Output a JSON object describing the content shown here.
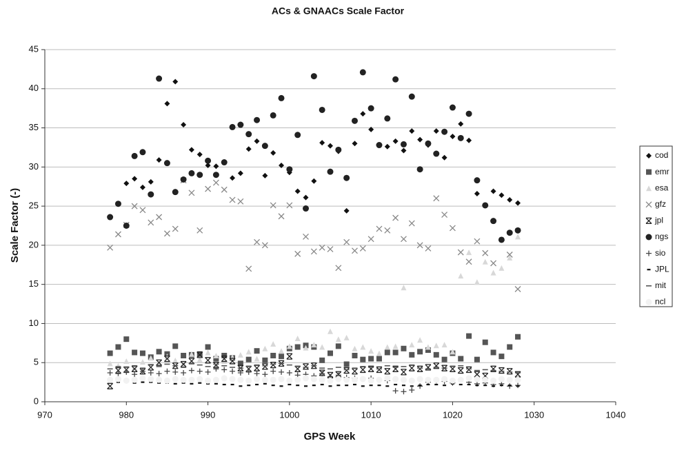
{
  "chart_data": {
    "type": "scatter",
    "title": "ACs & GNAACs Scale Factor",
    "x_label": "GPS Week",
    "y_label": "Scale Factor (-)",
    "xlim": [
      970,
      1040
    ],
    "xticks": [
      970,
      980,
      990,
      1000,
      1010,
      1020,
      1030,
      1040
    ],
    "ylim": [
      0,
      45
    ],
    "yticks": [
      0,
      5,
      10,
      15,
      20,
      25,
      30,
      35,
      40,
      45
    ],
    "grid": true,
    "legend": "right",
    "x": [
      978,
      979,
      980,
      981,
      982,
      983,
      984,
      985,
      986,
      987,
      988,
      989,
      990,
      991,
      992,
      993,
      994,
      995,
      996,
      997,
      998,
      999,
      1000,
      1001,
      1002,
      1003,
      1004,
      1005,
      1006,
      1007,
      1008,
      1009,
      1010,
      1011,
      1012,
      1013,
      1014,
      1015,
      1016,
      1017,
      1018,
      1019,
      1020,
      1021,
      1022,
      1023,
      1024,
      1025,
      1026,
      1027,
      1028
    ],
    "series": [
      {
        "name": "cod",
        "color": "#111111",
        "marker": "diamond",
        "values": [
          null,
          null,
          27.9,
          28.5,
          27.4,
          28.1,
          30.9,
          38.1,
          40.9,
          35.4,
          32.2,
          31.6,
          30.2,
          30.1,
          null,
          28.6,
          29.2,
          32.3,
          33.3,
          28.9,
          31.8,
          30.2,
          29.3,
          26.9,
          26.1,
          28.2,
          33.1,
          32.7,
          32.0,
          24.4,
          33.0,
          36.8,
          34.8,
          32.8,
          32.6,
          33.3,
          32.1,
          34.6,
          33.5,
          32.8,
          34.6,
          31.2,
          33.9,
          35.5,
          33.4,
          26.6,
          null,
          26.9,
          26.4,
          25.8,
          25.4
        ]
      },
      {
        "name": "emr",
        "color": "#555555",
        "marker": "square",
        "values": [
          6.2,
          7.0,
          8.0,
          6.3,
          6.2,
          5.7,
          6.4,
          6.1,
          7.1,
          5.9,
          6.0,
          6.1,
          7.0,
          5.5,
          5.9,
          5.6,
          4.9,
          5.4,
          6.5,
          5.3,
          5.9,
          5.8,
          6.8,
          7.0,
          7.2,
          7.0,
          5.3,
          6.2,
          7.1,
          4.8,
          5.9,
          5.4,
          5.5,
          5.5,
          6.3,
          6.3,
          6.8,
          6.0,
          6.4,
          6.6,
          6.0,
          5.4,
          6.2,
          5.5,
          8.4,
          5.4,
          7.6,
          6.3,
          5.8,
          7.0,
          8.3
        ]
      },
      {
        "name": "esa",
        "color": "#d8d8d8",
        "marker": "triangle",
        "values": [
          4.9,
          4.6,
          5.2,
          4.4,
          5.1,
          5.6,
          5.0,
          5.8,
          5.3,
          4.9,
          6.1,
          5.4,
          6.3,
          5.9,
          5.2,
          5.7,
          6.0,
          6.4,
          5.5,
          6.8,
          7.4,
          6.5,
          7.1,
          8.1,
          6.9,
          7.3,
          7.0,
          9.0,
          8.0,
          8.2,
          6.8,
          7.0,
          6.5,
          6.2,
          7.0,
          7.1,
          14.6,
          7.3,
          7.9,
          7.0,
          7.2,
          7.3,
          6.4,
          16.1,
          19.1,
          15.3,
          17.9,
          16.5,
          17.1,
          18.4,
          21.1
        ]
      },
      {
        "name": "gfz",
        "color": "#888888",
        "marker": "cross",
        "values": [
          19.7,
          21.4,
          22.6,
          25.0,
          24.5,
          22.9,
          23.6,
          21.5,
          22.1,
          28.3,
          26.7,
          21.9,
          27.2,
          28.0,
          27.1,
          25.8,
          25.6,
          17.0,
          20.4,
          20.0,
          25.1,
          23.7,
          25.1,
          18.9,
          21.1,
          19.2,
          19.7,
          19.5,
          17.1,
          20.4,
          19.3,
          19.6,
          20.8,
          22.1,
          21.9,
          23.5,
          20.8,
          22.8,
          20.0,
          19.6,
          26.0,
          23.9,
          22.2,
          19.1,
          17.9,
          20.5,
          19.0,
          17.7,
          null,
          18.8,
          14.4
        ]
      },
      {
        "name": "jpl",
        "color": "#222222",
        "marker": "bowtie",
        "values": [
          2.0,
          4.0,
          4.1,
          4.2,
          3.9,
          4.4,
          5.0,
          5.5,
          4.6,
          4.8,
          5.2,
          6.0,
          5.3,
          4.7,
          5.5,
          5.2,
          4.3,
          4.2,
          4.3,
          4.5,
          4.7,
          4.9,
          5.8,
          4.2,
          4.5,
          4.6,
          3.7,
          3.4,
          3.5,
          4.0,
          3.9,
          4.1,
          4.2,
          4.1,
          3.9,
          4.2,
          3.8,
          4.3,
          4.2,
          4.4,
          4.6,
          4.3,
          4.2,
          4.0,
          4.1,
          3.5,
          3.3,
          4.2,
          4.0,
          3.9,
          3.5
        ]
      },
      {
        "name": "ngs",
        "color": "#222222",
        "marker": "circle",
        "values": [
          23.6,
          25.3,
          22.5,
          31.4,
          31.9,
          26.5,
          41.3,
          30.5,
          26.8,
          28.4,
          29.2,
          29.0,
          30.8,
          29.0,
          30.6,
          35.1,
          35.4,
          34.2,
          36.0,
          32.7,
          36.6,
          38.8,
          29.7,
          34.1,
          24.7,
          41.6,
          37.3,
          29.4,
          32.2,
          28.6,
          35.9,
          42.1,
          37.5,
          32.8,
          36.2,
          41.2,
          32.9,
          39.0,
          29.7,
          33.0,
          31.7,
          34.5,
          37.6,
          33.7,
          36.8,
          28.3,
          25.1,
          23.1,
          20.7,
          21.6,
          21.9
        ]
      },
      {
        "name": "sio",
        "color": "#444444",
        "marker": "plus",
        "values": [
          3.7,
          3.6,
          3.8,
          3.5,
          3.9,
          3.7,
          3.6,
          3.9,
          3.8,
          3.7,
          4.0,
          3.9,
          3.8,
          4.2,
          4.1,
          3.9,
          3.7,
          3.8,
          3.6,
          3.5,
          3.9,
          3.8,
          3.7,
          3.4,
          3.5,
          3.3,
          3.6,
          3.2,
          3.4,
          3.1,
          3.0,
          2.9,
          3.0,
          2.8,
          2.7,
          1.4,
          1.3,
          1.5,
          2.0,
          2.5,
          2.7,
          2.6,
          2.4,
          2.8,
          2.5,
          2.3,
          2.4,
          2.2,
          2.3,
          2.0,
          2.1
        ]
      },
      {
        "name": "JPL",
        "color": "#111111",
        "marker": "short-dash",
        "values": [
          2.6,
          2.5,
          2.6,
          2.4,
          2.5,
          2.5,
          2.4,
          2.4,
          2.3,
          2.4,
          2.3,
          2.4,
          2.3,
          2.3,
          2.2,
          2.2,
          2.0,
          2.1,
          2.2,
          2.3,
          2.1,
          2.0,
          2.2,
          2.1,
          2.0,
          2.1,
          2.2,
          2.0,
          2.1,
          2.1,
          2.2,
          2.0,
          2.1,
          2.1,
          2.0,
          2.2,
          2.1,
          2.0,
          2.1,
          2.2,
          2.2,
          2.1,
          2.3,
          2.2,
          2.2,
          2.1,
          2.1,
          2.0,
          2.1,
          2.1,
          2.0
        ]
      },
      {
        "name": "mit",
        "color": "#555555",
        "marker": "dash",
        "values": [
          4.2,
          4.5,
          4.4,
          4.6,
          4.3,
          4.7,
          4.5,
          4.8,
          4.6,
          4.4,
          4.9,
          4.7,
          4.5,
          4.8,
          4.6,
          4.4,
          4.3,
          4.5,
          4.7,
          4.6,
          4.8,
          4.9,
          4.7,
          4.5,
          4.4,
          4.6,
          4.3,
          4.2,
          4.4,
          4.1,
          4.3,
          4.5,
          4.4,
          4.2,
          4.6,
          4.4,
          4.5,
          4.7,
          4.3,
          4.2,
          4.4,
          4.3,
          4.5,
          4.6,
          4.2,
          4.0,
          4.1,
          4.0,
          3.9,
          3.8,
          3.7
        ]
      },
      {
        "name": "ncl",
        "color": "#f2f2f2",
        "marker": "circle",
        "values": [
          2.8,
          2.9,
          2.7,
          2.8,
          3.0,
          2.9,
          2.8,
          2.7,
          2.9,
          2.8,
          2.8,
          2.9,
          2.7,
          2.8,
          3.0,
          2.9,
          2.8,
          2.7,
          2.9,
          2.8,
          2.8,
          2.9,
          2.7,
          2.8,
          3.0,
          2.9,
          2.8,
          2.7,
          2.9,
          2.8,
          2.8,
          2.9,
          2.7,
          2.8,
          3.0,
          2.9,
          2.8,
          2.7,
          2.9,
          2.8,
          2.8,
          2.9,
          2.7,
          2.8,
          3.0,
          2.9,
          2.8,
          2.7,
          2.9,
          2.8,
          2.8
        ]
      }
    ]
  }
}
